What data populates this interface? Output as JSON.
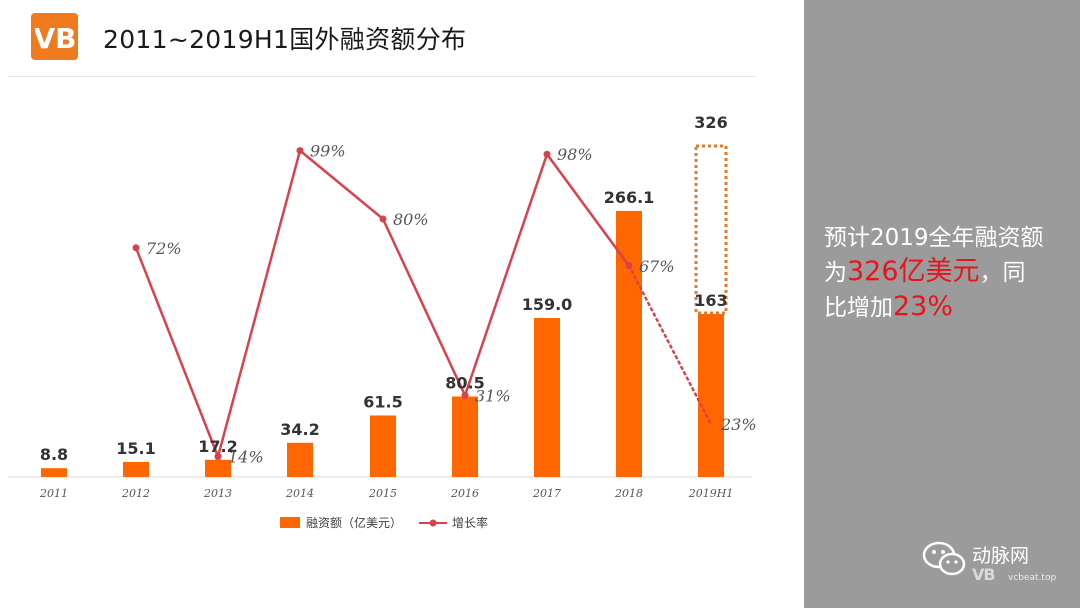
{
  "header": {
    "title": "2011~2019H1国外融资额分布",
    "logo_text": "VB"
  },
  "side_note": {
    "line1": "预计2019全年融资额",
    "line2_prefix": "为",
    "line2_highlight": "326亿美元",
    "line2_suffix": "，同",
    "line3_prefix": "比增加",
    "line3_highlight": "23%"
  },
  "watermark": {
    "name": "动脉网",
    "url": "vcbeat.top"
  },
  "colors": {
    "bar": "#ff6600",
    "line": "#d6434d",
    "dotted_box": "#e07b28",
    "panel": "#9b9b9b",
    "highlight": "#e8141a"
  },
  "chart_data": {
    "type": "bar",
    "categories": [
      "2011",
      "2012",
      "2013",
      "2014",
      "2015",
      "2016",
      "2017",
      "2018",
      "2019H1"
    ],
    "series": [
      {
        "name": "融资额（亿美元）",
        "type": "bar",
        "values": [
          8.8,
          15.1,
          17.2,
          34.2,
          61.5,
          80.5,
          159.0,
          266.1,
          163
        ],
        "labels": [
          "8.8",
          "15.1",
          "17.2",
          "34.2",
          "61.5",
          "80.5",
          "159.0",
          "266.1",
          "163"
        ]
      },
      {
        "name": "增长率",
        "type": "line",
        "values": [
          null,
          72,
          14,
          99,
          80,
          31,
          98,
          67,
          23
        ],
        "labels": [
          "",
          "72%",
          "14%",
          "99%",
          "80%",
          "31%",
          "98%",
          "67%",
          "23%"
        ],
        "dotted_last_segment": true
      }
    ],
    "projection": {
      "category": "2019H1",
      "value": 326,
      "label": "326"
    },
    "legend": [
      "融资额（亿美元）",
      "增长率"
    ],
    "legend_position": "bottom",
    "grid": false
  }
}
